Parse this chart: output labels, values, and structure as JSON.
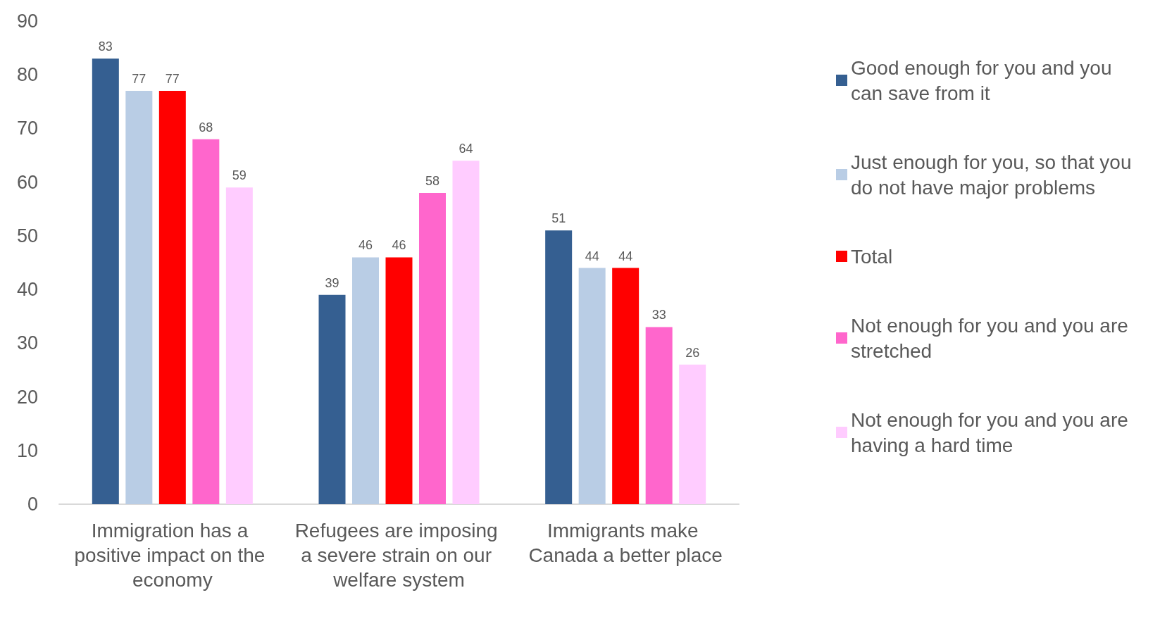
{
  "chart_data": {
    "type": "bar",
    "categories": [
      "Immigration has a positive impact on the economy",
      "Refugees are imposing a severe strain on our welfare system",
      "Immigrants make Canada a better place"
    ],
    "series": [
      {
        "name": "Good enough for you and you can save from it",
        "color": "#355f91",
        "values": [
          83,
          39,
          51
        ]
      },
      {
        "name": "Just enough for you, so that you do not have major problems",
        "color": "#b9cde5",
        "values": [
          77,
          46,
          44
        ]
      },
      {
        "name": "Total",
        "color": "#ff0000",
        "values": [
          77,
          46,
          44
        ]
      },
      {
        "name": "Not enough for you and you are stretched",
        "color": "#ff66cc",
        "values": [
          68,
          58,
          33
        ]
      },
      {
        "name": "Not enough for you and you are having a hard time",
        "color": "#ffccff",
        "values": [
          59,
          64,
          26
        ]
      }
    ],
    "ylim": [
      0,
      90
    ],
    "yticks": [
      0,
      10,
      20,
      30,
      40,
      50,
      60,
      70,
      80,
      90
    ],
    "grid": false,
    "legend": "right",
    "data_labels": true
  }
}
